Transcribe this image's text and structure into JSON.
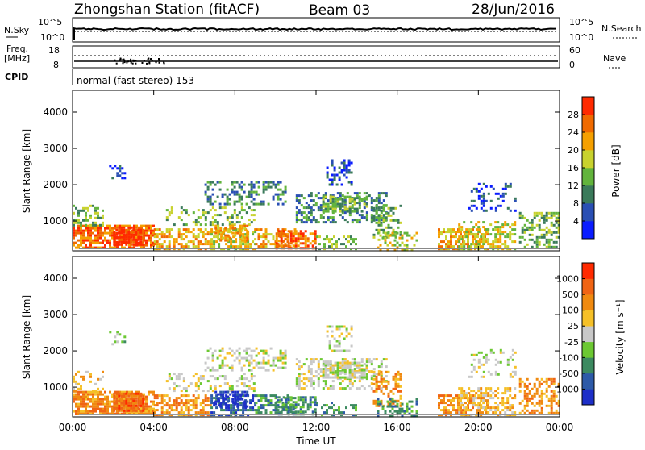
{
  "header": {
    "station": "Zhongshan Station (fitACF)",
    "beam": "Beam 03",
    "date": "28/Jun/2016"
  },
  "top_panels": {
    "nsky": {
      "left_label": "N.Sky",
      "left_ticks": [
        "10^5",
        "10^0"
      ],
      "right_label": "N.Search",
      "right_ticks": [
        "10^5",
        "10^0"
      ]
    },
    "freq": {
      "left_label_line1": "Freq.",
      "left_label_line2": "[MHz]",
      "left_ticks": [
        "18",
        "8"
      ],
      "right_label": "Nave",
      "right_ticks": [
        "60",
        "0"
      ]
    },
    "cpid": {
      "label": "CPID",
      "text": "normal (fast stereo) 153"
    }
  },
  "chart_data": [
    {
      "type": "heatmap",
      "title": "",
      "xlabel": "",
      "ylabel": "Slant Range [km]",
      "x_ticks": [
        "00:00",
        "04:00",
        "08:00",
        "12:00",
        "16:00",
        "20:00",
        "00:00"
      ],
      "y_ticks": [
        "1000",
        "2000",
        "3000",
        "4000"
      ],
      "ylim": [
        180,
        4600
      ],
      "xlim_hours": [
        0,
        24
      ],
      "colorbar": {
        "label": "Power [dB]",
        "ticks": [
          "4",
          "8",
          "12",
          "16",
          "20",
          "24",
          "28"
        ],
        "colors": [
          "#0a1cff",
          "#2a4fb4",
          "#3a7a5a",
          "#62b43c",
          "#c8d22e",
          "#f5a000",
          "#f06a00",
          "#ff2a00"
        ]
      }
    },
    {
      "type": "heatmap",
      "title": "",
      "xlabel": "Time UT",
      "ylabel": "Slant Range [km]",
      "x_ticks": [
        "00:00",
        "04:00",
        "08:00",
        "12:00",
        "16:00",
        "20:00",
        "00:00"
      ],
      "y_ticks": [
        "1000",
        "2000",
        "3000",
        "4000"
      ],
      "ylim": [
        180,
        4600
      ],
      "xlim_hours": [
        0,
        24
      ],
      "colorbar": {
        "label": "Velocity [m s⁻¹]",
        "ticks": [
          "1000",
          "500",
          "100",
          "25",
          "-25",
          "-100",
          "-500",
          "-1000"
        ],
        "colors": [
          "#1d2fc8",
          "#2d5aa8",
          "#3c8a60",
          "#6cc832",
          "#c8c8c8",
          "#f5c028",
          "#f08a10",
          "#f06414",
          "#ff2a00"
        ]
      }
    }
  ]
}
